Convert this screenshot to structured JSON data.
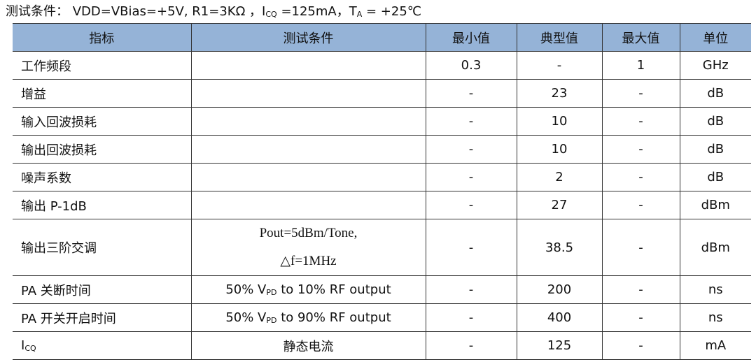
{
  "title": {
    "prefix": "测试条件：  VDD=VBias=+5V, R1=3KΩ ，I",
    "sub1": "CQ",
    "mid": " =125mA，T",
    "sub2": "A",
    "suffix": " = +25℃"
  },
  "headers": [
    "指标",
    "测试条件",
    "最小值",
    "典型值",
    "最大值",
    "单位"
  ],
  "rows": [
    {
      "name": "工作频段",
      "cond": "",
      "min": "0.3",
      "typ": "-",
      "max": "1",
      "unit": "GHz"
    },
    {
      "name": "增益",
      "cond": "",
      "min": "-",
      "typ": "23",
      "max": "-",
      "unit": "dB"
    },
    {
      "name": "输入回波损耗",
      "cond": "",
      "min": "-",
      "typ": "10",
      "max": "-",
      "unit": "dB"
    },
    {
      "name": "输出回波损耗",
      "cond": "",
      "min": "-",
      "typ": "10",
      "max": "-",
      "unit": "dB"
    },
    {
      "name": "噪声系数",
      "cond": "",
      "min": "-",
      "typ": "2",
      "max": "-",
      "unit": "dB"
    },
    {
      "name": "输出 P-1dB",
      "cond": "",
      "min": "-",
      "typ": "27",
      "max": "-",
      "unit": "dBm"
    },
    {
      "name": "输出三阶交调",
      "cond1": "Pout=5dBm/Tone,",
      "cond2": "△f=1MHz",
      "min": "-",
      "typ": "38.5",
      "max": "-",
      "unit": "dBm"
    },
    {
      "name": "PA 关断时间",
      "cond_a": "50% V",
      "cond_sub": "PD",
      "cond_b": " to 10% RF output",
      "min": "-",
      "typ": "200",
      "max": "-",
      "unit": "ns"
    },
    {
      "name": "PA  开关开启时间",
      "cond_a": "50% V",
      "cond_sub": "PD",
      "cond_b": " to 90% RF output",
      "min": "-",
      "typ": "400",
      "max": "-",
      "unit": "ns"
    },
    {
      "name_a": "I",
      "name_sub": "CQ",
      "cond": "静态电流",
      "min": "-",
      "typ": "125",
      "max": "-",
      "unit": "mA"
    }
  ]
}
